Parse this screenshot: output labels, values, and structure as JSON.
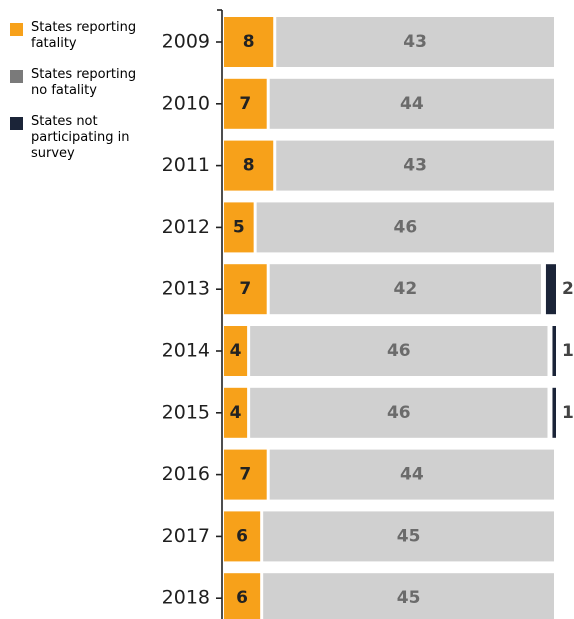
{
  "chart_data": {
    "type": "bar",
    "orientation": "horizontal",
    "stacked": true,
    "categories": [
      "2009",
      "2010",
      "2011",
      "2012",
      "2013",
      "2014",
      "2015",
      "2016",
      "2017",
      "2018"
    ],
    "series": [
      {
        "name": "States reporting fatality",
        "color": "#f7a11a",
        "label_color": "#222222",
        "values": [
          8,
          7,
          8,
          5,
          7,
          4,
          4,
          7,
          6,
          6
        ]
      },
      {
        "name": "States reporting no fatality",
        "color": "#d0d0d0",
        "legend_color": "#7a7a7a",
        "label_color": "#6b6b6b",
        "values": [
          43,
          44,
          43,
          46,
          42,
          46,
          46,
          44,
          45,
          45
        ]
      },
      {
        "name": "States not participating in survey",
        "color": "#1b2438",
        "label_color": "#444444",
        "values": [
          0,
          0,
          0,
          0,
          2,
          1,
          1,
          0,
          0,
          0
        ]
      }
    ],
    "title": "",
    "xlabel": "",
    "ylabel": "",
    "xlim": [
      0,
      53
    ],
    "legend_position": "left",
    "grid": false
  }
}
